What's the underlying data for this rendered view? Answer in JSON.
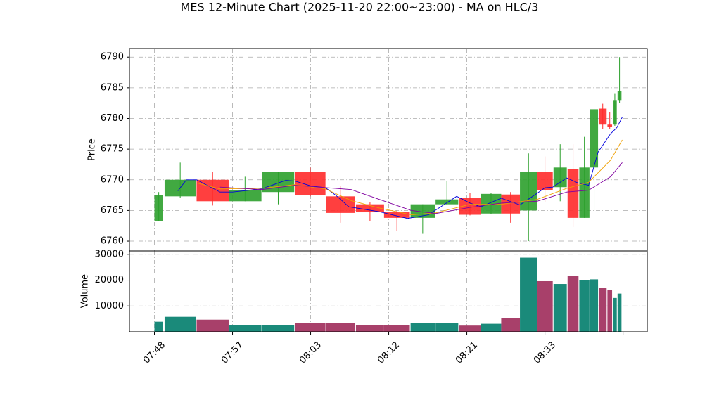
{
  "chart_data": {
    "type": "candlestick",
    "title": "MES 12-Minute Chart (2025-11-20 22:00~23:00) - MA on HLC/3",
    "ylabel": "Price",
    "volume_label": "Volume",
    "grid": true,
    "up_color": "#2ca02c",
    "down_color": "#ff2a2a",
    "volume_up_color": "#1a8a7a",
    "volume_down_color": "#a8406a",
    "xlim": [
      -3.2,
      63.1
    ],
    "xticks": [
      {
        "value": 0,
        "label": "07:48"
      },
      {
        "value": 10,
        "label": "07:57"
      },
      {
        "value": 20,
        "label": "08:03"
      },
      {
        "value": 30,
        "label": "08:12"
      },
      {
        "value": 40,
        "label": "08:21"
      },
      {
        "value": 50,
        "label": "08:33"
      },
      {
        "value": 60,
        "label": null
      }
    ],
    "ylim": [
      6758.4,
      6791.4
    ],
    "yticks": [
      6760,
      6765,
      6770,
      6775,
      6780,
      6785,
      6790
    ],
    "volume_ylim": [
      0,
      31300
    ],
    "volume_yticks": [
      10000,
      20000,
      30000
    ],
    "candles": {
      "x0": [
        0,
        1.3,
        5.4,
        9.5,
        13.8,
        18,
        22,
        25.8,
        29.4,
        32.8,
        36,
        39,
        41.8,
        44.4,
        46.8,
        49,
        51.1,
        52.9,
        54.4,
        55.8,
        56.9,
        58,
        58.7,
        59.3
      ],
      "x1": [
        1.1,
        5.3,
        9.5,
        13.7,
        17.9,
        21.9,
        25.7,
        29.4,
        32.7,
        35.9,
        38.9,
        41.8,
        44.4,
        46.8,
        49,
        51,
        52.8,
        54.3,
        55.7,
        56.8,
        57.9,
        58.6,
        59.2,
        59.8
      ],
      "open": [
        6763.3,
        6767.3,
        6770,
        6766.5,
        6768,
        6771.3,
        6767.3,
        6766,
        6764.7,
        6763.8,
        6766,
        6767,
        6764.5,
        6767.6,
        6765,
        6771.3,
        6768.8,
        6771.7,
        6763.8,
        6772,
        6781.6,
        6779,
        6779,
        6783
      ],
      "high": [
        6768,
        6772.8,
        6771.3,
        6770.5,
        6771.3,
        6772,
        6769,
        6766.3,
        6765,
        6766,
        6769.8,
        6767.9,
        6767.9,
        6768,
        6774.3,
        6773.8,
        6775.8,
        6775.8,
        6777,
        6781.6,
        6782.4,
        6781,
        6784,
        6790
      ],
      "low": [
        6763.3,
        6767,
        6765.8,
        6766.5,
        6766,
        6767.3,
        6763,
        6763.3,
        6761.7,
        6761.2,
        6765.9,
        6764.2,
        6764.4,
        6763,
        6760,
        6766.3,
        6766.5,
        6762.3,
        6763.8,
        6765,
        6778.3,
        6778.3,
        6778.8,
        6782.5
      ],
      "close": [
        6767.5,
        6770,
        6766.5,
        6768.3,
        6771.3,
        6767.5,
        6764.6,
        6764.7,
        6763.8,
        6766,
        6766.8,
        6764.3,
        6767.7,
        6764.5,
        6771.3,
        6768.3,
        6772,
        6763.8,
        6772,
        6781.5,
        6779,
        6778.6,
        6783,
        6784.5
      ],
      "volume": [
        3900,
        5800,
        4700,
        2700,
        2700,
        3300,
        3300,
        2700,
        2700,
        3500,
        3300,
        2400,
        3100,
        5300,
        28700,
        19600,
        18500,
        21600,
        20100,
        20300,
        17100,
        16200,
        13100,
        14800
      ]
    },
    "series": [
      {
        "color": "#0000dd",
        "x": [
          3,
          4.1,
          5.4,
          8.4,
          10,
          13.7,
          16.8,
          18,
          20,
          21.9,
          23.2,
          24.9,
          28.8,
          32.4,
          35.1,
          38.7,
          40.4,
          41.8,
          44.4,
          46.8,
          49,
          50,
          51,
          52.8,
          54.2,
          55.6,
          56.8,
          58.4,
          59.2,
          59.9
        ],
        "values": [
          6768.2,
          6770,
          6770,
          6768,
          6768,
          6768.5,
          6769.9,
          6769.8,
          6769,
          6768.7,
          6767.5,
          6765.6,
          6764.8,
          6763.7,
          6764.3,
          6767.3,
          6766.2,
          6765.6,
          6767,
          6765.9,
          6767.8,
          6768.7,
          6768.8,
          6770.3,
          6769.5,
          6769.1,
          6774.5,
          6777.5,
          6778.5,
          6780.2
        ]
      },
      {
        "color": "#f0a000",
        "x": [
          5.4,
          8.4,
          13.7,
          18,
          21.9,
          25.2,
          28.8,
          32.9,
          36,
          40.4,
          44.4,
          49,
          52.8,
          55.6,
          58.4,
          59.9
        ],
        "values": [
          6769.5,
          6768.5,
          6768.6,
          6769.2,
          6768.5,
          6766.6,
          6765.4,
          6764.3,
          6764.6,
          6766,
          6766,
          6766.8,
          6768.6,
          6769.6,
          6773.2,
          6776.5
        ]
      },
      {
        "color": "#8000a0",
        "x": [
          8.4,
          13.7,
          18,
          25.2,
          28.8,
          32.9,
          36,
          40.4,
          44.4,
          49,
          52.8,
          55.6,
          58.4,
          59.9
        ],
        "values": [
          6768.8,
          6768.4,
          6769.1,
          6768.4,
          6766.8,
          6765,
          6764.5,
          6765.5,
          6766.2,
          6766.5,
          6768,
          6768.3,
          6770.5,
          6772.8
        ]
      }
    ]
  }
}
